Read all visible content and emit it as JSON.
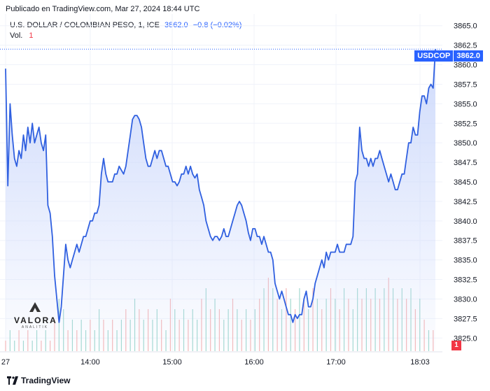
{
  "header": {
    "published": "Publicado en TradingView.com, Mar 27, 2024 18:44 UTC"
  },
  "legend": {
    "symbol_desc": "U.S. DOLLAR / COLOMBIAN PESO, 1, ICE",
    "price": "3862.0",
    "change": "−0.8 (−0.02%)",
    "vol_label": "Vol.",
    "vol_value": "1"
  },
  "price_tag": {
    "symbol": "USDCOP",
    "value": "3862.0"
  },
  "volume_tag": "1",
  "watermark": {
    "name": "VALORA",
    "sub": "ANALITIK"
  },
  "footer": {
    "brand": "TradingView"
  },
  "colors": {
    "line": "#3060e0",
    "fill_top": "#c9d6fb",
    "vol_up": "#a3d9d0",
    "vol_down": "#f5b8b8",
    "accent": "#2962ff"
  },
  "chart_data": {
    "type": "area",
    "ylim": [
      3823.5,
      3866.5
    ],
    "yticks": [
      "3825.0",
      "3827.5",
      "3830.0",
      "3832.5",
      "3835.0",
      "3837.5",
      "3840.0",
      "3842.5",
      "3845.0",
      "3847.5",
      "3850.0",
      "3852.5",
      "3855.0",
      "3857.5",
      "3860.0",
      "3862.5",
      "3865.0"
    ],
    "xticks": [
      {
        "label": "27",
        "t": 0
      },
      {
        "label": "14:00",
        "t": 124
      },
      {
        "label": "15:00",
        "t": 244
      },
      {
        "label": "16:00",
        "t": 364
      },
      {
        "label": "17:00",
        "t": 484
      },
      {
        "label": "18:03",
        "t": 607
      }
    ],
    "series": [
      {
        "values": [
          [
            0,
            3859.5
          ],
          [
            2,
            3844.5
          ],
          [
            4,
            3855
          ],
          [
            6,
            3851
          ],
          [
            8,
            3848
          ],
          [
            10,
            3847
          ],
          [
            12,
            3849
          ],
          [
            14,
            3848
          ],
          [
            16,
            3851
          ],
          [
            18,
            3849
          ],
          [
            20,
            3852
          ],
          [
            22,
            3850
          ],
          [
            24,
            3852.5
          ],
          [
            26,
            3850
          ],
          [
            28,
            3851
          ],
          [
            30,
            3852
          ],
          [
            32,
            3850
          ],
          [
            34,
            3849
          ],
          [
            36,
            3851
          ],
          [
            38,
            3842
          ],
          [
            40,
            3841
          ],
          [
            42,
            3838
          ],
          [
            44,
            3833
          ],
          [
            46,
            3830
          ],
          [
            48,
            3827
          ],
          [
            50,
            3829
          ],
          [
            52,
            3833
          ],
          [
            54,
            3837
          ],
          [
            56,
            3835
          ],
          [
            58,
            3834
          ],
          [
            60,
            3835
          ],
          [
            62,
            3836
          ],
          [
            64,
            3837
          ],
          [
            66,
            3836
          ],
          [
            68,
            3837
          ],
          [
            70,
            3838
          ],
          [
            72,
            3838
          ],
          [
            74,
            3839
          ],
          [
            76,
            3840
          ],
          [
            78,
            3840
          ],
          [
            80,
            3841
          ],
          [
            82,
            3841
          ],
          [
            84,
            3842
          ],
          [
            86,
            3846
          ],
          [
            88,
            3848
          ],
          [
            90,
            3846
          ],
          [
            92,
            3845
          ],
          [
            94,
            3845
          ],
          [
            96,
            3845
          ],
          [
            98,
            3846
          ],
          [
            100,
            3846
          ],
          [
            102,
            3847
          ],
          [
            104,
            3846.5
          ],
          [
            106,
            3846
          ],
          [
            108,
            3847
          ],
          [
            110,
            3849
          ],
          [
            112,
            3851
          ],
          [
            114,
            3853
          ],
          [
            116,
            3853.5
          ],
          [
            118,
            3853.5
          ],
          [
            120,
            3853
          ],
          [
            122,
            3852
          ],
          [
            124,
            3850
          ],
          [
            126,
            3848
          ],
          [
            128,
            3847
          ],
          [
            130,
            3847
          ],
          [
            132,
            3848
          ],
          [
            134,
            3849
          ],
          [
            136,
            3848
          ],
          [
            138,
            3849
          ],
          [
            140,
            3849
          ],
          [
            142,
            3848
          ],
          [
            144,
            3847
          ],
          [
            146,
            3847
          ],
          [
            148,
            3846
          ],
          [
            150,
            3845
          ],
          [
            152,
            3845
          ],
          [
            154,
            3844.5
          ],
          [
            156,
            3845
          ],
          [
            158,
            3846
          ],
          [
            160,
            3846
          ],
          [
            162,
            3847
          ],
          [
            164,
            3846
          ],
          [
            166,
            3847
          ],
          [
            168,
            3846
          ],
          [
            170,
            3845.5
          ],
          [
            172,
            3846
          ],
          [
            174,
            3844
          ],
          [
            176,
            3843
          ],
          [
            178,
            3842
          ],
          [
            180,
            3840
          ],
          [
            182,
            3839
          ],
          [
            184,
            3838
          ],
          [
            186,
            3837.5
          ],
          [
            188,
            3838
          ],
          [
            190,
            3838
          ],
          [
            192,
            3837.5
          ],
          [
            194,
            3838
          ],
          [
            196,
            3839
          ],
          [
            198,
            3838
          ],
          [
            200,
            3838
          ],
          [
            202,
            3839
          ],
          [
            204,
            3840
          ],
          [
            206,
            3841
          ],
          [
            208,
            3842
          ],
          [
            210,
            3842.5
          ],
          [
            212,
            3842
          ],
          [
            214,
            3841
          ],
          [
            216,
            3840
          ],
          [
            218,
            3838.5
          ],
          [
            220,
            3837.5
          ],
          [
            222,
            3839
          ],
          [
            224,
            3839
          ],
          [
            226,
            3838
          ],
          [
            228,
            3838
          ],
          [
            230,
            3837
          ],
          [
            232,
            3838
          ],
          [
            234,
            3837
          ],
          [
            236,
            3836
          ],
          [
            238,
            3836
          ],
          [
            240,
            3835
          ],
          [
            242,
            3832
          ],
          [
            244,
            3831
          ],
          [
            246,
            3830
          ],
          [
            248,
            3831
          ],
          [
            250,
            3830
          ],
          [
            252,
            3829
          ],
          [
            254,
            3828
          ],
          [
            256,
            3828
          ],
          [
            258,
            3827
          ],
          [
            260,
            3828
          ],
          [
            262,
            3827.5
          ],
          [
            264,
            3828
          ],
          [
            266,
            3828
          ],
          [
            268,
            3830
          ],
          [
            270,
            3831
          ],
          [
            272,
            3829
          ],
          [
            274,
            3829
          ],
          [
            276,
            3830
          ],
          [
            278,
            3832
          ],
          [
            280,
            3833
          ],
          [
            282,
            3834
          ],
          [
            284,
            3835
          ],
          [
            286,
            3834
          ],
          [
            288,
            3836
          ],
          [
            290,
            3835
          ],
          [
            292,
            3836
          ],
          [
            294,
            3836
          ],
          [
            296,
            3836
          ],
          [
            298,
            3837
          ],
          [
            300,
            3836
          ],
          [
            302,
            3836
          ],
          [
            304,
            3836
          ],
          [
            306,
            3837
          ],
          [
            308,
            3837
          ],
          [
            310,
            3837
          ],
          [
            312,
            3838
          ],
          [
            314,
            3845
          ],
          [
            316,
            3846
          ],
          [
            318,
            3852
          ],
          [
            320,
            3849
          ],
          [
            322,
            3848
          ],
          [
            324,
            3848
          ],
          [
            326,
            3847
          ],
          [
            328,
            3848
          ],
          [
            330,
            3847
          ],
          [
            332,
            3848
          ],
          [
            334,
            3848
          ],
          [
            336,
            3849
          ],
          [
            338,
            3848
          ],
          [
            340,
            3847
          ],
          [
            342,
            3846
          ],
          [
            344,
            3845
          ],
          [
            346,
            3846
          ],
          [
            348,
            3845
          ],
          [
            350,
            3844
          ],
          [
            352,
            3844
          ],
          [
            354,
            3845
          ],
          [
            356,
            3846
          ],
          [
            358,
            3846
          ],
          [
            360,
            3848
          ],
          [
            362,
            3850
          ],
          [
            364,
            3850
          ],
          [
            366,
            3852
          ],
          [
            368,
            3851
          ],
          [
            370,
            3851
          ],
          [
            372,
            3854
          ],
          [
            374,
            3856
          ],
          [
            376,
            3856
          ],
          [
            378,
            3855
          ],
          [
            380,
            3857
          ],
          [
            382,
            3857.5
          ],
          [
            384,
            3857
          ],
          [
            386,
            3862
          ]
        ]
      }
    ],
    "volume": [
      [
        0,
        1,
        "d"
      ],
      [
        4,
        2,
        "u"
      ],
      [
        8,
        1,
        "u"
      ],
      [
        12,
        2,
        "d"
      ],
      [
        16,
        1,
        "u"
      ],
      [
        20,
        2,
        "d"
      ],
      [
        24,
        1,
        "u"
      ],
      [
        28,
        2,
        "u"
      ],
      [
        32,
        1,
        "d"
      ],
      [
        36,
        2,
        "u"
      ],
      [
        40,
        1,
        "d"
      ],
      [
        44,
        3,
        "d"
      ],
      [
        48,
        5,
        "u"
      ],
      [
        52,
        4,
        "u"
      ],
      [
        56,
        2,
        "d"
      ],
      [
        60,
        3,
        "u"
      ],
      [
        64,
        2,
        "d"
      ],
      [
        68,
        3,
        "u"
      ],
      [
        72,
        2,
        "u"
      ],
      [
        76,
        3,
        "d"
      ],
      [
        80,
        2,
        "u"
      ],
      [
        84,
        4,
        "u"
      ],
      [
        88,
        3,
        "d"
      ],
      [
        92,
        2,
        "u"
      ],
      [
        96,
        3,
        "d"
      ],
      [
        100,
        2,
        "u"
      ],
      [
        104,
        3,
        "u"
      ],
      [
        108,
        4,
        "d"
      ],
      [
        112,
        3,
        "u"
      ],
      [
        116,
        5,
        "u"
      ],
      [
        120,
        4,
        "d"
      ],
      [
        124,
        3,
        "u"
      ],
      [
        128,
        4,
        "d"
      ],
      [
        132,
        3,
        "u"
      ],
      [
        136,
        4,
        "u"
      ],
      [
        140,
        3,
        "d"
      ],
      [
        144,
        2,
        "u"
      ],
      [
        148,
        5,
        "d"
      ],
      [
        152,
        4,
        "u"
      ],
      [
        156,
        3,
        "d"
      ],
      [
        160,
        4,
        "u"
      ],
      [
        164,
        3,
        "d"
      ],
      [
        168,
        4,
        "u"
      ],
      [
        172,
        3,
        "u"
      ],
      [
        176,
        5,
        "d"
      ],
      [
        180,
        6,
        "u"
      ],
      [
        184,
        4,
        "d"
      ],
      [
        188,
        5,
        "u"
      ],
      [
        192,
        4,
        "d"
      ],
      [
        196,
        3,
        "u"
      ],
      [
        200,
        4,
        "u"
      ],
      [
        204,
        5,
        "d"
      ],
      [
        208,
        4,
        "u"
      ],
      [
        212,
        3,
        "d"
      ],
      [
        216,
        4,
        "u"
      ],
      [
        220,
        3,
        "d"
      ],
      [
        224,
        4,
        "u"
      ],
      [
        228,
        5,
        "d"
      ],
      [
        232,
        6,
        "u"
      ],
      [
        236,
        7,
        "d"
      ],
      [
        240,
        6,
        "u"
      ],
      [
        244,
        5,
        "d"
      ],
      [
        248,
        4,
        "u"
      ],
      [
        252,
        6,
        "d"
      ],
      [
        256,
        5,
        "u"
      ],
      [
        260,
        4,
        "d"
      ],
      [
        264,
        6,
        "u"
      ],
      [
        268,
        5,
        "d"
      ],
      [
        272,
        4,
        "u"
      ],
      [
        276,
        6,
        "d"
      ],
      [
        280,
        5,
        "u"
      ],
      [
        284,
        4,
        "d"
      ],
      [
        288,
        5,
        "u"
      ],
      [
        292,
        6,
        "d"
      ],
      [
        296,
        5,
        "u"
      ],
      [
        300,
        4,
        "d"
      ],
      [
        304,
        6,
        "u"
      ],
      [
        308,
        5,
        "d"
      ],
      [
        312,
        4,
        "u"
      ],
      [
        316,
        6,
        "u"
      ],
      [
        320,
        5,
        "d"
      ],
      [
        324,
        6,
        "u"
      ],
      [
        328,
        5,
        "d"
      ],
      [
        332,
        6,
        "u"
      ],
      [
        336,
        5,
        "d"
      ],
      [
        340,
        6,
        "u"
      ],
      [
        344,
        7,
        "d"
      ],
      [
        348,
        6,
        "u"
      ],
      [
        352,
        5,
        "d"
      ],
      [
        356,
        6,
        "u"
      ],
      [
        360,
        5,
        "d"
      ],
      [
        364,
        6,
        "u"
      ],
      [
        368,
        4,
        "d"
      ],
      [
        372,
        5,
        "u"
      ],
      [
        376,
        3,
        "d"
      ],
      [
        380,
        2,
        "u"
      ],
      [
        384,
        2,
        "d"
      ]
    ]
  }
}
